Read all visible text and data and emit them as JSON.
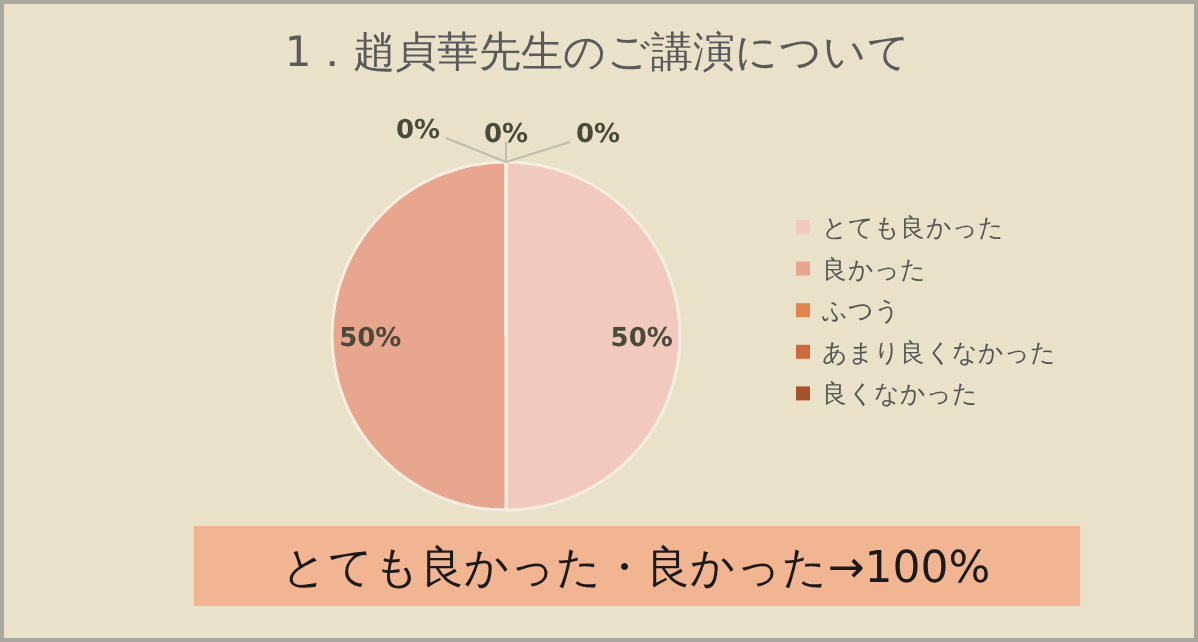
{
  "chart_data": {
    "type": "pie",
    "title": "1．趙貞華先生のご講演について",
    "categories": [
      "とても良かった",
      "良かった",
      "ふつう",
      "あまり良くなかった",
      "良くなかった"
    ],
    "values": [
      50,
      50,
      0,
      0,
      0
    ],
    "colors": [
      "#f2c9bd",
      "#e9a68e",
      "#e2844e",
      "#cc6a3e",
      "#a5512c"
    ],
    "value_labels": [
      "50%",
      "50%",
      "0%",
      "0%",
      "0%"
    ],
    "legend": "right",
    "annotations": [
      "とても良かった・良かった→100%"
    ]
  }
}
